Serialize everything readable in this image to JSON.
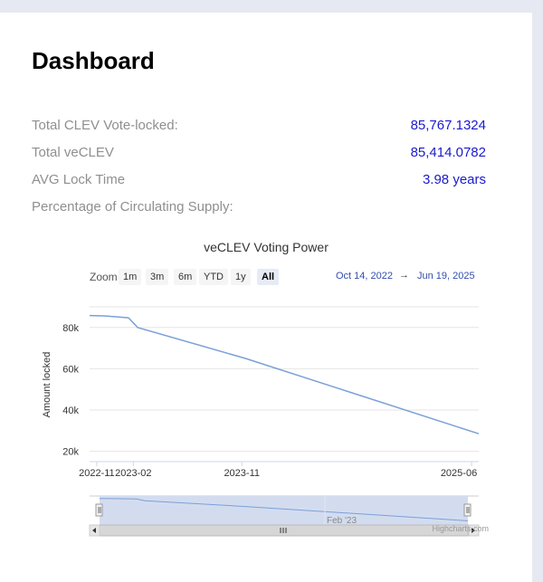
{
  "page": {
    "title": "Dashboard"
  },
  "stats": [
    {
      "label": "Total CLEV Vote-locked:",
      "value": "85,767.1324"
    },
    {
      "label": "Total veCLEV",
      "value": "85,414.0782"
    },
    {
      "label": "AVG Lock Time",
      "value": "3.98 years"
    },
    {
      "label": "Percentage of Circulating Supply:",
      "value": ""
    }
  ],
  "chart": {
    "zoom_label": "Zoom",
    "zoom_buttons": [
      {
        "label": "1m",
        "active": false
      },
      {
        "label": "3m",
        "active": false
      },
      {
        "label": "6m",
        "active": false
      },
      {
        "label": "YTD",
        "active": false
      },
      {
        "label": "1y",
        "active": false
      },
      {
        "label": "All",
        "active": true
      }
    ],
    "range_from": "Oct 14, 2022",
    "range_arrow": "→",
    "range_to": "Jun 19, 2025",
    "navigator_label": "Feb '23",
    "credit": "Highcharts.com",
    "colors": {
      "line": "#7aa0d8",
      "navigator_fill": "#d3dcef"
    }
  },
  "chart_data": {
    "type": "line",
    "title": "veCLEV Voting Power",
    "ylabel": "Amount locked",
    "xlabel": "",
    "yticks": [
      "20k",
      "40k",
      "60k",
      "80k"
    ],
    "xticks": [
      "2022-11",
      "2023-02",
      "2023-11",
      "2025-06"
    ],
    "ylim": [
      15000,
      90000
    ],
    "grid": true,
    "series": [
      {
        "points": [
          {
            "x": "2022-10-14",
            "y": 85800
          },
          {
            "x": "2022-11-20",
            "y": 85600
          },
          {
            "x": "2023-01-20",
            "y": 84700
          },
          {
            "x": "2023-02-12",
            "y": 80000
          },
          {
            "x": "2023-11-10",
            "y": 65000
          },
          {
            "x": "2025-06-19",
            "y": 28500
          }
        ]
      }
    ]
  }
}
